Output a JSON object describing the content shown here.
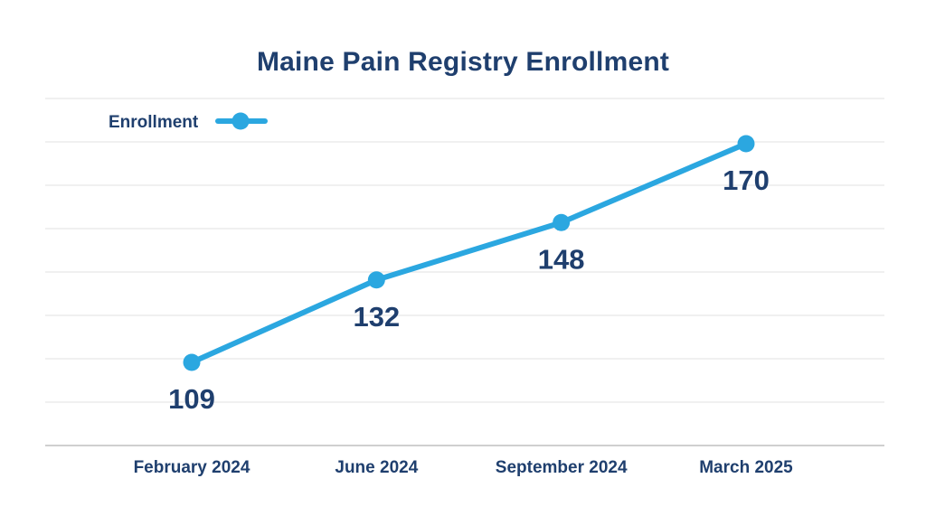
{
  "chart_data": {
    "type": "line",
    "title": "Maine Pain Registry Enrollment",
    "xlabel": "",
    "ylabel": "",
    "categories": [
      "February 2024",
      "June 2024",
      "September 2024",
      "March 2025"
    ],
    "series": [
      {
        "name": "Enrollment",
        "values": [
          109,
          132,
          148,
          170
        ],
        "color": "#2ba7e0"
      }
    ],
    "ylim": [
      70,
      190
    ],
    "grid": true,
    "legend": "top-left",
    "data_labels": true,
    "colors": {
      "text": "#1f3f6e",
      "line": "#2ba7e0",
      "grid": "#ebebeb",
      "axis": "#cfcfcf"
    }
  }
}
